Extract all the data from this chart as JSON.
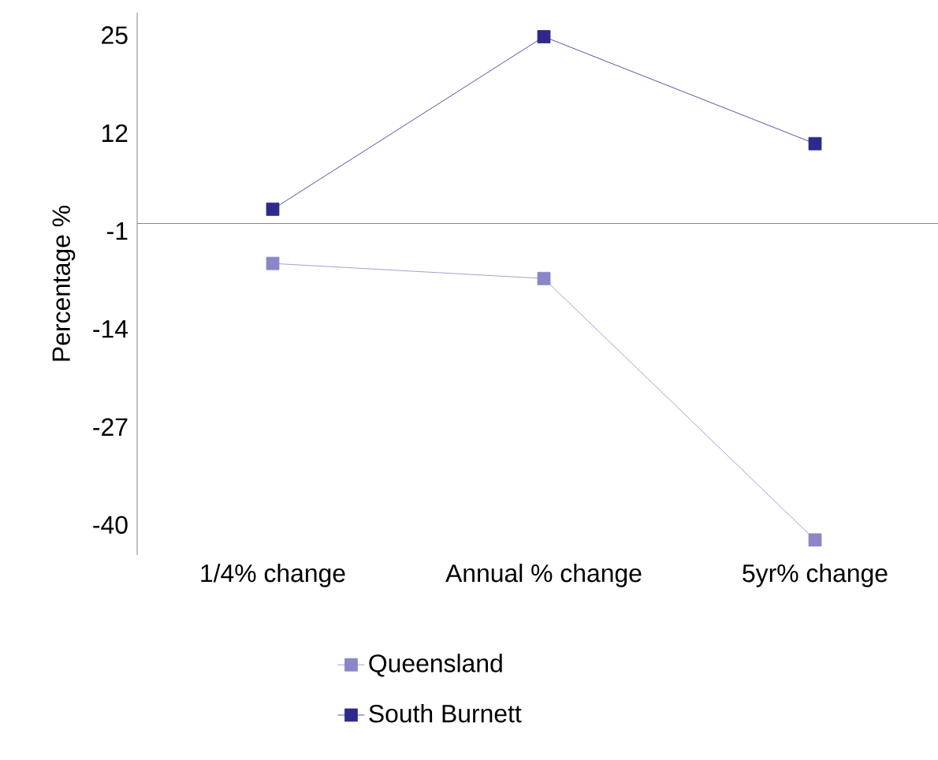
{
  "chart_data": {
    "type": "line",
    "ylabel": "Percentage %",
    "categories": [
      "1/4% change",
      "Annual % change",
      "5yr% change"
    ],
    "series": [
      {
        "name": "Queensland",
        "color": "#8b86c8",
        "values": [
          -5.3,
          -7.3,
          -42.0
        ]
      },
      {
        "name": "South Burnett",
        "color": "#2e2a8c",
        "values": [
          1.9,
          24.8,
          10.6
        ]
      }
    ],
    "ylim": [
      -44,
      28
    ],
    "yticks": [
      -40,
      -27,
      -14,
      -1,
      12,
      25
    ],
    "marker": "square",
    "legend": "bottom",
    "grid": false
  }
}
